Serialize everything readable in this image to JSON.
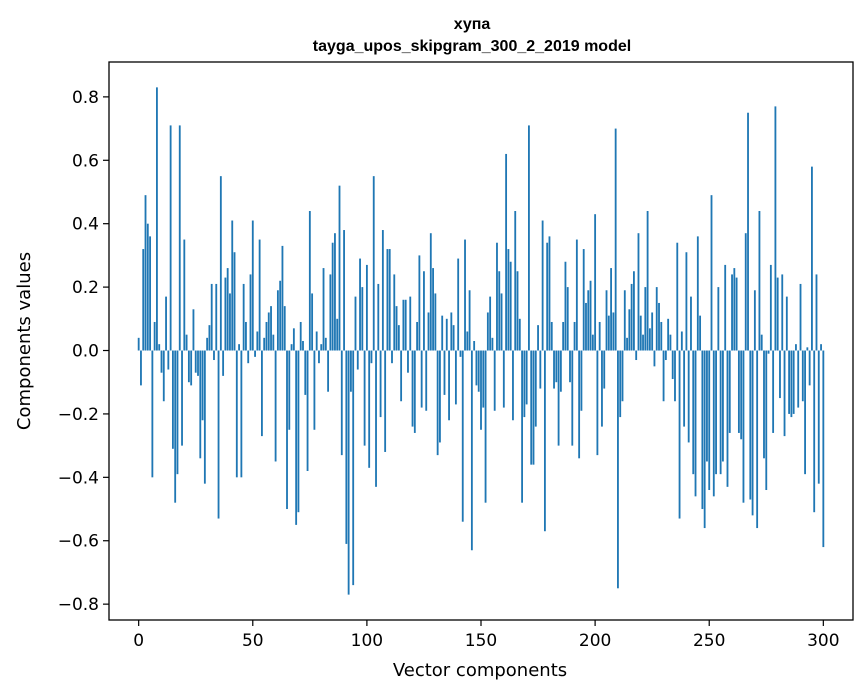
{
  "chart_data": {
    "type": "bar",
    "title": "хупа",
    "subtitle": "tayga_upos_skipgram_300_2_2019 model",
    "xlabel": "Vector components",
    "ylabel": "Components values",
    "xlim": [
      -13,
      313
    ],
    "ylim": [
      -0.85,
      0.91
    ],
    "xticks": [
      0,
      50,
      100,
      150,
      200,
      250,
      300
    ],
    "xtick_labels": [
      "0",
      "50",
      "100",
      "150",
      "200",
      "250",
      "300"
    ],
    "yticks": [
      -0.8,
      -0.6,
      -0.4,
      -0.2,
      0.0,
      0.2,
      0.4,
      0.6,
      0.8
    ],
    "ytick_labels": [
      "−0.8",
      "−0.6",
      "−0.4",
      "−0.2",
      "0.0",
      "0.2",
      "0.4",
      "0.6",
      "0.8"
    ],
    "bar_color": "#1f77b4",
    "grid": false,
    "x": "indices 0..299",
    "values": [
      0.04,
      -0.11,
      0.32,
      0.49,
      0.4,
      0.36,
      -0.4,
      0.09,
      0.83,
      0.02,
      -0.07,
      -0.16,
      0.17,
      -0.06,
      0.71,
      -0.31,
      -0.48,
      -0.39,
      0.71,
      -0.3,
      0.35,
      0.05,
      -0.1,
      -0.11,
      0.13,
      -0.07,
      -0.08,
      -0.34,
      -0.22,
      -0.42,
      0.04,
      0.08,
      0.21,
      -0.03,
      0.21,
      -0.53,
      0.55,
      -0.08,
      0.23,
      0.26,
      0.18,
      0.41,
      0.31,
      -0.4,
      0.02,
      -0.4,
      0.21,
      0.09,
      -0.04,
      0.24,
      0.41,
      -0.02,
      0.06,
      0.35,
      -0.27,
      0.04,
      0.09,
      0.12,
      0.14,
      0.05,
      -0.35,
      0.19,
      0.22,
      0.33,
      0.14,
      -0.5,
      -0.25,
      0.02,
      0.07,
      -0.55,
      -0.51,
      0.09,
      0.03,
      -0.14,
      -0.38,
      0.44,
      0.18,
      -0.25,
      0.06,
      -0.04,
      0.02,
      0.26,
      0.04,
      -0.13,
      0.24,
      0.34,
      0.37,
      0.1,
      0.52,
      -0.33,
      0.38,
      -0.61,
      -0.77,
      -0.13,
      -0.74,
      0.17,
      -0.06,
      0.29,
      0.2,
      -0.3,
      0.27,
      -0.37,
      -0.04,
      0.55,
      -0.43,
      0.21,
      -0.21,
      0.38,
      -0.32,
      0.32,
      0.32,
      -0.04,
      0.24,
      0.14,
      0.08,
      -0.16,
      0.16,
      0.16,
      -0.07,
      0.17,
      -0.24,
      -0.26,
      0.09,
      0.3,
      -0.18,
      0.25,
      -0.19,
      0.12,
      0.37,
      0.26,
      0.18,
      -0.33,
      -0.29,
      0.11,
      -0.14,
      0.1,
      -0.22,
      0.12,
      0.08,
      -0.17,
      0.29,
      -0.02,
      -0.54,
      0.35,
      0.06,
      0.19,
      -0.63,
      0.03,
      -0.11,
      -0.13,
      -0.25,
      -0.18,
      -0.48,
      0.12,
      0.17,
      0.04,
      -0.19,
      0.34,
      0.25,
      0.18,
      -0.18,
      0.62,
      0.32,
      0.28,
      -0.22,
      0.44,
      0.25,
      0.1,
      -0.48,
      -0.21,
      -0.17,
      0.71,
      -0.36,
      -0.36,
      -0.24,
      0.08,
      -0.12,
      0.41,
      -0.57,
      0.34,
      0.36,
      0.09,
      -0.12,
      -0.1,
      -0.3,
      -0.13,
      0.09,
      0.28,
      0.2,
      -0.1,
      -0.3,
      0.09,
      0.35,
      -0.34,
      -0.19,
      0.32,
      0.15,
      0.19,
      0.22,
      0.05,
      0.43,
      -0.33,
      0.09,
      -0.24,
      -0.12,
      0.19,
      0.11,
      0.26,
      0.12,
      0.7,
      -0.75,
      -0.21,
      -0.16,
      0.19,
      0.04,
      0.13,
      0.21,
      0.25,
      -0.03,
      0.37,
      0.11,
      0.05,
      0.2,
      0.44,
      0.07,
      0.12,
      -0.05,
      0.2,
      0.15,
      0.09,
      -0.16,
      -0.03,
      0.1,
      0.05,
      -0.09,
      -0.16,
      0.34,
      -0.53,
      0.06,
      -0.24,
      0.31,
      -0.29,
      0.17,
      -0.39,
      -0.46,
      0.36,
      0.11,
      -0.5,
      -0.56,
      -0.35,
      -0.44,
      0.49,
      -0.46,
      -0.39,
      0.2,
      -0.39,
      -0.35,
      0.27,
      -0.43,
      -0.26,
      0.24,
      0.26,
      0.23,
      -0.26,
      -0.28,
      -0.48,
      0.37,
      0.75,
      -0.47,
      -0.52,
      0.19,
      -0.56,
      0.44,
      0.05,
      -0.34,
      -0.44,
      -0.01,
      0.27,
      -0.26,
      0.77,
      0.23,
      -0.15,
      0.24,
      -0.27,
      0.17,
      -0.2,
      -0.21,
      -0.2,
      0.02,
      -0.18,
      0.21,
      -0.16,
      -0.39,
      0.01,
      -0.11,
      0.58,
      -0.51,
      0.24,
      -0.42,
      0.02,
      -0.62
    ]
  }
}
